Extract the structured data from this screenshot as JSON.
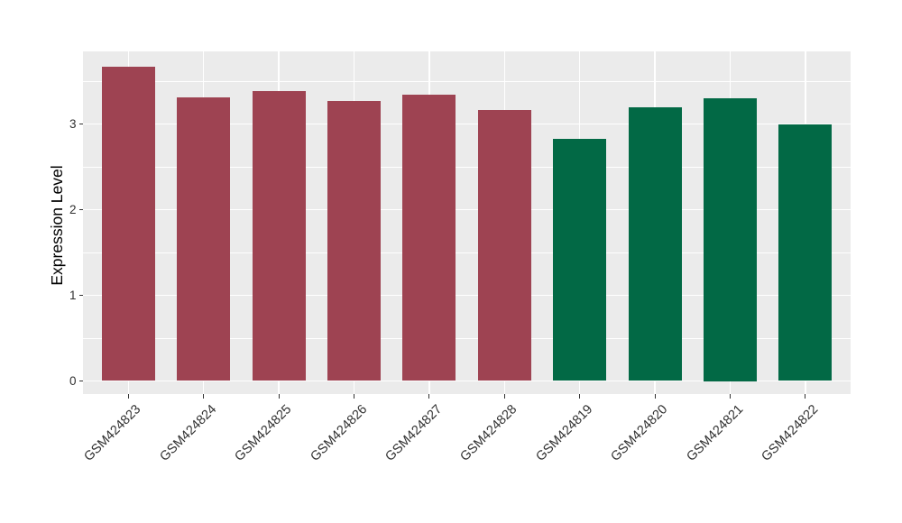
{
  "figure": {
    "background": "#FFFFFF",
    "panel_background": "#EBEBEB",
    "gridline_color": "#FFFFFF",
    "tick_color": "#333333",
    "axis_text_color": "#303030",
    "axis_title_color": "#000000"
  },
  "chart_data": {
    "type": "bar",
    "title": "",
    "xlabel": "",
    "ylabel": "Expression Level",
    "categories": [
      "GSM424823",
      "GSM424824",
      "GSM424825",
      "GSM424826",
      "GSM424827",
      "GSM424828",
      "GSM424819",
      "GSM424820",
      "GSM424821",
      "GSM424822"
    ],
    "values": [
      3.67,
      3.31,
      3.38,
      3.27,
      3.34,
      3.16,
      2.83,
      3.19,
      3.3,
      2.99
    ],
    "bar_colors": [
      "#9E4352",
      "#9E4352",
      "#9E4352",
      "#9E4352",
      "#9E4352",
      "#9E4352",
      "#026945",
      "#026945",
      "#026945",
      "#026945"
    ],
    "palette": {
      "maroon": "#9E4352",
      "green": "#026945"
    },
    "y_ticks": [
      0,
      1,
      2,
      3
    ],
    "y_tick_labels": [
      "0",
      "1",
      "2",
      "3"
    ],
    "y_minor_ticks": [
      0.5,
      1.5,
      2.5,
      3.5
    ],
    "ylim": [
      0,
      3.85
    ],
    "grid": true,
    "legend": "none",
    "x_label_rotation_deg": 45
  }
}
